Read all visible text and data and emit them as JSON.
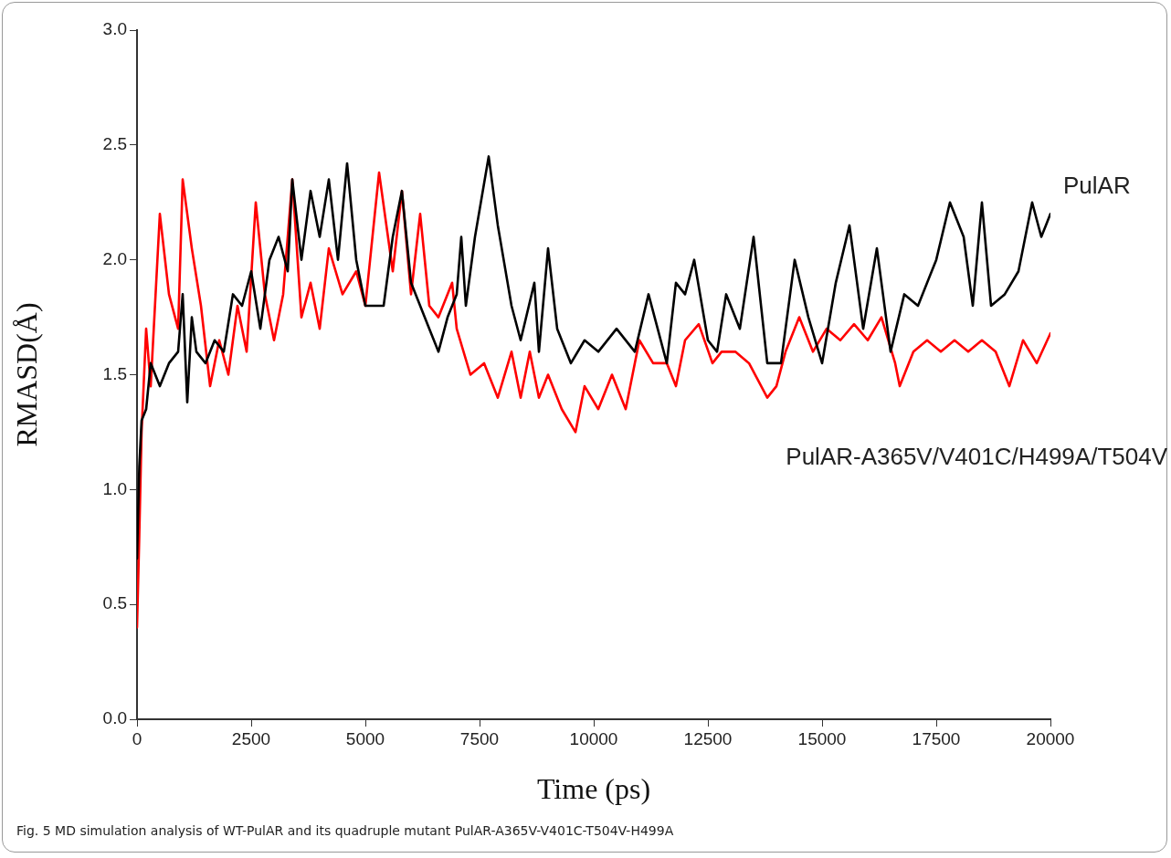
{
  "chart_data": {
    "type": "line",
    "xlabel": "Time (ps)",
    "ylabel": "RMASD(Å)",
    "xlim": [
      0,
      20000
    ],
    "xticks": [
      0,
      2500,
      5000,
      7500,
      10000,
      12500,
      15000,
      17500,
      20000
    ],
    "ylim": [
      0,
      3
    ],
    "yticks": [
      {
        "value": 0,
        "label": "0.0"
      },
      {
        "value": 0.5,
        "label": "0.5"
      },
      {
        "value": 1,
        "label": "1.0"
      },
      {
        "value": 1.5,
        "label": "1.5"
      },
      {
        "value": 2,
        "label": "2.0"
      },
      {
        "value": 2.5,
        "label": "2.5"
      },
      {
        "value": 3,
        "label": "3.0"
      }
    ],
    "grid": false,
    "legend": false,
    "marker": "none",
    "line_style": "solid",
    "annotations": [
      "Fig. 5  MD simulation analysis of WT-PulAR and its quadruple mutant PulAR-A365V-V401C-T504V-H499A"
    ],
    "series": [
      {
        "name": "PulAR",
        "color": "#000000",
        "x": [
          0,
          50,
          100,
          200,
          300,
          500,
          700,
          900,
          1000,
          1100,
          1200,
          1300,
          1500,
          1700,
          1900,
          2100,
          2300,
          2500,
          2700,
          2900,
          3100,
          3300,
          3400,
          3600,
          3800,
          4000,
          4200,
          4400,
          4600,
          4800,
          5000,
          5200,
          5400,
          5600,
          5800,
          6000,
          6200,
          6400,
          6600,
          6800,
          7000,
          7100,
          7200,
          7400,
          7700,
          7900,
          8200,
          8400,
          8700,
          8800,
          9000,
          9200,
          9500,
          9800,
          10100,
          10500,
          10900,
          11200,
          11400,
          11600,
          11800,
          12000,
          12200,
          12500,
          12700,
          12900,
          13200,
          13500,
          13800,
          14100,
          14400,
          14700,
          15000,
          15300,
          15600,
          15900,
          16200,
          16500,
          16800,
          17100,
          17500,
          17800,
          18100,
          18300,
          18500,
          18700,
          19000,
          19300,
          19600,
          19800,
          19900,
          20000
        ],
        "values": [
          0.7,
          1.1,
          1.3,
          1.35,
          1.55,
          1.45,
          1.55,
          1.6,
          1.85,
          1.38,
          1.75,
          1.6,
          1.55,
          1.65,
          1.6,
          1.85,
          1.8,
          1.95,
          1.7,
          2.0,
          2.1,
          1.95,
          2.35,
          2.0,
          2.3,
          2.1,
          2.35,
          2.0,
          2.42,
          2.0,
          1.8,
          1.8,
          1.8,
          2.1,
          2.3,
          1.9,
          1.8,
          1.7,
          1.6,
          1.75,
          1.85,
          2.1,
          1.8,
          2.1,
          2.45,
          2.15,
          1.8,
          1.65,
          1.9,
          1.6,
          2.05,
          1.7,
          1.55,
          1.65,
          1.6,
          1.7,
          1.6,
          1.85,
          1.7,
          1.55,
          1.9,
          1.85,
          2.0,
          1.65,
          1.6,
          1.85,
          1.7,
          2.1,
          1.55,
          1.55,
          2.0,
          1.75,
          1.55,
          1.9,
          2.15,
          1.7,
          2.05,
          1.6,
          1.85,
          1.8,
          2.0,
          2.25,
          2.1,
          1.8,
          2.25,
          1.8,
          1.85,
          1.95,
          2.25,
          2.1,
          2.15,
          2.2
        ]
      },
      {
        "name": "PulAR-A365V/V401C/H499A/T504V",
        "color": "#ff0000",
        "x": [
          0,
          50,
          100,
          200,
          300,
          500,
          700,
          900,
          1000,
          1200,
          1400,
          1600,
          1800,
          2000,
          2200,
          2400,
          2600,
          2800,
          3000,
          3200,
          3400,
          3600,
          3800,
          4000,
          4200,
          4500,
          4800,
          5000,
          5300,
          5600,
          5800,
          6000,
          6200,
          6400,
          6600,
          6900,
          7000,
          7300,
          7600,
          7900,
          8200,
          8400,
          8600,
          8800,
          9000,
          9300,
          9600,
          9800,
          10100,
          10400,
          10700,
          11000,
          11300,
          11600,
          11800,
          12000,
          12300,
          12600,
          12800,
          13100,
          13400,
          13800,
          14000,
          14200,
          14500,
          14800,
          15100,
          15400,
          15700,
          16000,
          16300,
          16600,
          16700,
          17000,
          17300,
          17600,
          17900,
          18200,
          18500,
          18800,
          19100,
          19400,
          19700,
          20000
        ],
        "values": [
          0.4,
          0.8,
          1.25,
          1.7,
          1.45,
          2.2,
          1.85,
          1.7,
          2.35,
          2.05,
          1.8,
          1.45,
          1.65,
          1.5,
          1.8,
          1.6,
          2.25,
          1.85,
          1.65,
          1.85,
          2.35,
          1.75,
          1.9,
          1.7,
          2.05,
          1.85,
          1.95,
          1.8,
          2.38,
          1.95,
          2.3,
          1.85,
          2.2,
          1.8,
          1.75,
          1.9,
          1.7,
          1.5,
          1.55,
          1.4,
          1.6,
          1.4,
          1.6,
          1.4,
          1.5,
          1.35,
          1.25,
          1.45,
          1.35,
          1.5,
          1.35,
          1.65,
          1.55,
          1.55,
          1.45,
          1.65,
          1.72,
          1.55,
          1.6,
          1.6,
          1.55,
          1.4,
          1.45,
          1.6,
          1.75,
          1.6,
          1.7,
          1.65,
          1.72,
          1.65,
          1.75,
          1.55,
          1.45,
          1.6,
          1.65,
          1.6,
          1.65,
          1.6,
          1.65,
          1.6,
          1.45,
          1.65,
          1.55,
          1.68
        ]
      }
    ]
  }
}
